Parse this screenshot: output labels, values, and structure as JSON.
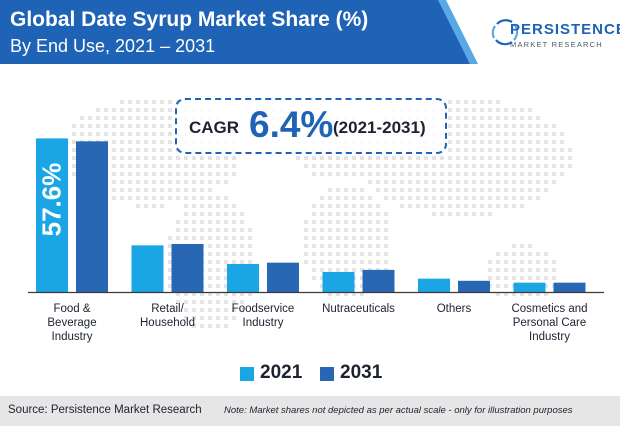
{
  "header": {
    "title": "Global Date Syrup Market Share (%)",
    "subtitle": "By End Use, 2021 – 2031"
  },
  "logo": {
    "name": "PERSISTENCE",
    "tagline": "MARKET RESEARCH"
  },
  "cagr": {
    "label": "CAGR",
    "value": "6.4%",
    "period": "(2021-2031)"
  },
  "colors": {
    "header": "#1e63b6",
    "series_2021": "#1aa6e4",
    "series_2031": "#2767b4",
    "map_dots": "#e4e4e4"
  },
  "chart_data": {
    "type": "bar",
    "title": "Global Date Syrup Market Share (%)",
    "categories": [
      "Food & Beverage Industry",
      "Retail/ Household",
      "Foodservice Industry",
      "Nutraceuticals",
      "Others",
      "Cosmetics and Personal Care Industry"
    ],
    "category_lines": [
      [
        "Food &",
        "Beverage",
        "Industry"
      ],
      [
        "Retail/",
        "Household"
      ],
      [
        "Foodservice",
        "Industry"
      ],
      [
        "Nutraceuticals"
      ],
      [
        "Others"
      ],
      [
        "Cosmetics and",
        "Personal Care",
        "Industry"
      ]
    ],
    "series": [
      {
        "name": "2021",
        "values": [
          57.6,
          17.5,
          10.5,
          7.5,
          5.0,
          3.5
        ]
      },
      {
        "name": "2031",
        "values": [
          56.5,
          18.0,
          11.0,
          8.3,
          4.2,
          3.5
        ]
      }
    ],
    "data_labels": [
      {
        "series": "2021",
        "category": "Food & Beverage Industry",
        "text": "57.6%"
      }
    ],
    "ylim": [
      0,
      60
    ],
    "grid": false,
    "legend_position": "bottom",
    "note": "actual scale not depicted"
  },
  "legend": {
    "items": [
      "2021",
      "2031"
    ]
  },
  "footer": {
    "source": "Source: Persistence Market Research",
    "note": "Note: Market shares not depicted as per actual scale - only for illustration purposes"
  }
}
